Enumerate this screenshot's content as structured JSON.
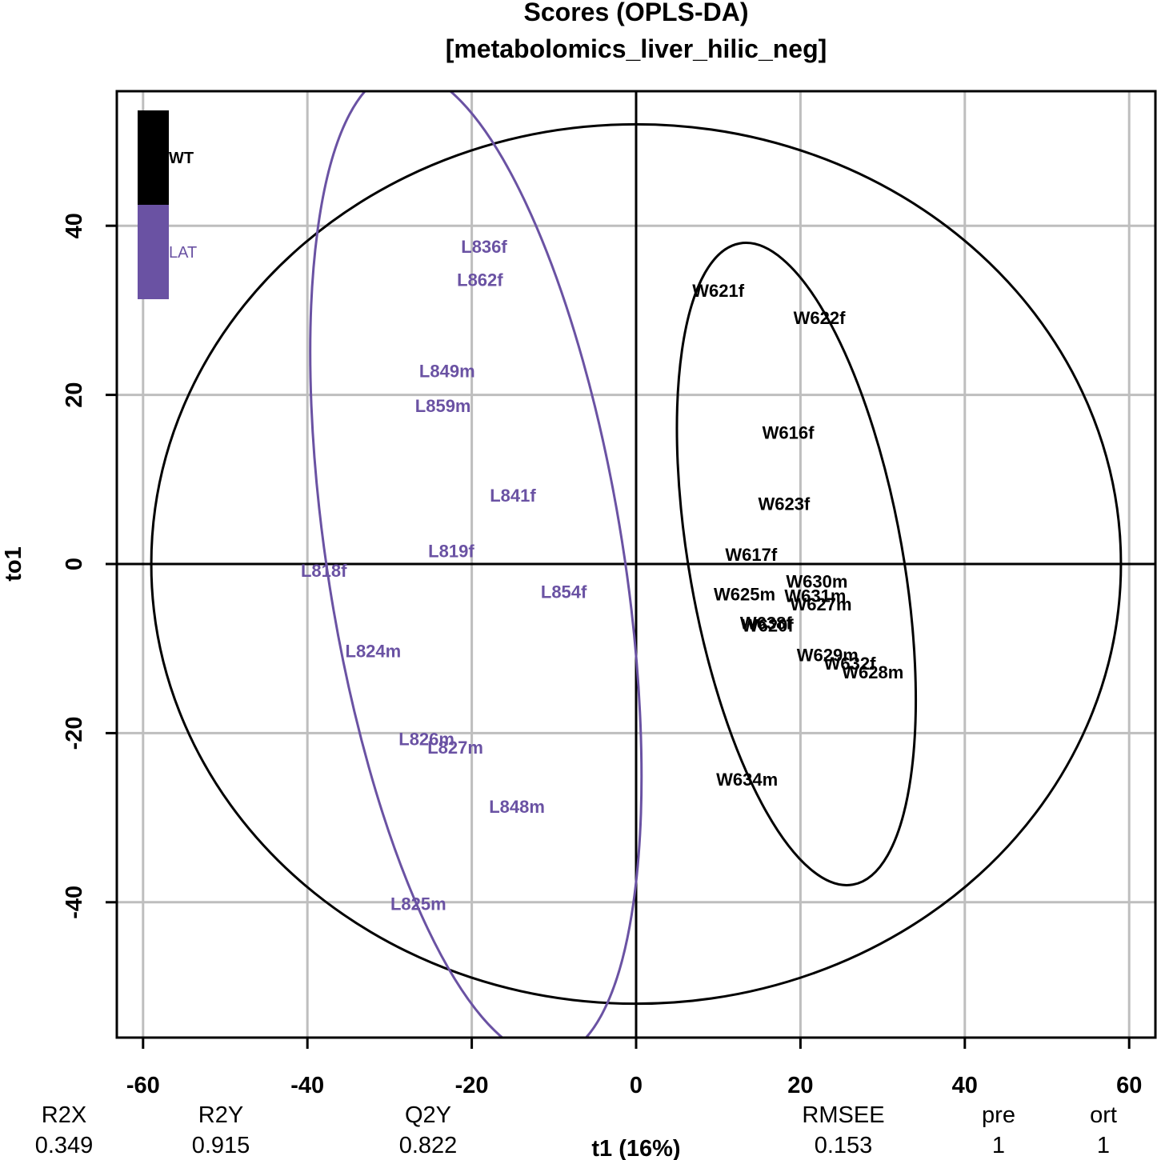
{
  "chart_data": {
    "type": "scatter",
    "title": "Scores (OPLS-DA)",
    "subtitle": "[metabolomics_liver_hilic_neg]",
    "xlabel": "t1 (16%)",
    "ylabel": "to1",
    "xlim": [
      -63,
      63
    ],
    "ylim": [
      -56,
      56
    ],
    "xticks": [
      -60,
      -40,
      -20,
      0,
      20,
      40,
      60
    ],
    "yticks": [
      -40,
      -20,
      0,
      20,
      40
    ],
    "grid": true,
    "legend_position": "top-left",
    "series": [
      {
        "name": "WT",
        "color": "#000000",
        "points": [
          {
            "label": "W621f",
            "x": 10,
            "y": 32.3
          },
          {
            "label": "W622f",
            "x": 22.3,
            "y": 29.1
          },
          {
            "label": "W616f",
            "x": 18.5,
            "y": 15.5
          },
          {
            "label": "W623f",
            "x": 18,
            "y": 7.1
          },
          {
            "label": "W617f",
            "x": 14,
            "y": 1.1
          },
          {
            "label": "W630m",
            "x": 22,
            "y": -2.1
          },
          {
            "label": "W625m",
            "x": 13.2,
            "y": -3.6
          },
          {
            "label": "W631m",
            "x": 21.8,
            "y": -3.8
          },
          {
            "label": "W627m",
            "x": 22.5,
            "y": -4.8
          },
          {
            "label": "W638f",
            "x": 15.8,
            "y": -7.0
          },
          {
            "label": "W620f",
            "x": 16,
            "y": -7.3
          },
          {
            "label": "W629m",
            "x": 23.3,
            "y": -10.8
          },
          {
            "label": "W632f",
            "x": 26,
            "y": -11.8
          },
          {
            "label": "W628m",
            "x": 28.8,
            "y": -12.8
          },
          {
            "label": "W634m",
            "x": 13.5,
            "y": -25.5
          }
        ],
        "ellipse": {
          "cx": 19.5,
          "cy": 0,
          "rx": 13,
          "ry": 38.5,
          "angle": -10
        }
      },
      {
        "name": "LAT",
        "color": "#6a52a3",
        "points": [
          {
            "label": "L836f",
            "x": -18.5,
            "y": 37.5
          },
          {
            "label": "L862f",
            "x": -19,
            "y": 33.6
          },
          {
            "label": "L849m",
            "x": -23,
            "y": 22.8
          },
          {
            "label": "L859m",
            "x": -23.5,
            "y": 18.7
          },
          {
            "label": "L841f",
            "x": -15,
            "y": 8.1
          },
          {
            "label": "L819f",
            "x": -22.5,
            "y": 1.5
          },
          {
            "label": "L818f",
            "x": -38,
            "y": -0.8
          },
          {
            "label": "L854f",
            "x": -8.8,
            "y": -3.3
          },
          {
            "label": "L824m",
            "x": -32,
            "y": -10.3
          },
          {
            "label": "L826m",
            "x": -25.5,
            "y": -20.7
          },
          {
            "label": "L827m",
            "x": -22,
            "y": -21.7
          },
          {
            "label": "L848m",
            "x": -14.5,
            "y": -28.7
          },
          {
            "label": "L825m",
            "x": -26.5,
            "y": -40.2
          }
        ],
        "ellipse": {
          "cx": -19.5,
          "cy": 0,
          "rx": 18,
          "ry": 59,
          "angle": -9
        }
      }
    ],
    "hotelling_ellipse": {
      "rx": 59,
      "ry": 52
    }
  },
  "stats": {
    "labels": [
      "R2X",
      "R2Y",
      "Q2Y",
      "RMSEE",
      "pre",
      "ort"
    ],
    "values": [
      "0.349",
      "0.915",
      "0.822",
      "0.153",
      "1",
      "1"
    ]
  }
}
